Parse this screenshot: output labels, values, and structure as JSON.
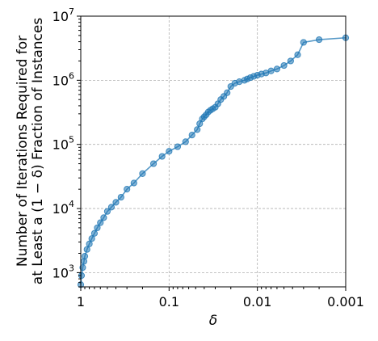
{
  "chart_data": {
    "type": "line",
    "xscale": "log",
    "yscale": "log",
    "x_inverted": true,
    "xlim": [
      1,
      0.001
    ],
    "ylim": [
      600,
      10000000
    ],
    "xlabel": "δ",
    "ylabel_line1": "Number of Iterations Required for",
    "ylabel_line2": "at Least a (1 − δ) Fraction of Instances",
    "x_ticks": [
      {
        "value": 1,
        "label": "1"
      },
      {
        "value": 0.1,
        "label": "0.1"
      },
      {
        "value": 0.01,
        "label": "0.01"
      },
      {
        "value": 0.001,
        "label": "0.001"
      }
    ],
    "y_ticks": [
      {
        "value": 1000,
        "base": "10",
        "exp": "3"
      },
      {
        "value": 10000,
        "base": "10",
        "exp": "4"
      },
      {
        "value": 100000,
        "base": "10",
        "exp": "5"
      },
      {
        "value": 1000000,
        "base": "10",
        "exp": "6"
      },
      {
        "value": 10000000,
        "base": "10",
        "exp": "7"
      }
    ],
    "grid": true,
    "color": "#1f77b4",
    "series": [
      {
        "x": [
          1.0,
          0.98,
          0.95,
          0.92,
          0.9,
          0.85,
          0.8,
          0.75,
          0.7,
          0.65,
          0.6,
          0.55,
          0.5,
          0.45,
          0.4,
          0.35,
          0.3,
          0.25,
          0.2,
          0.15,
          0.12,
          0.1,
          0.08,
          0.065,
          0.055,
          0.048,
          0.045,
          0.042,
          0.04,
          0.038,
          0.036,
          0.034,
          0.032,
          0.03,
          0.028,
          0.026,
          0.024,
          0.022,
          0.02,
          0.018,
          0.016,
          0.014,
          0.013,
          0.012,
          0.011,
          0.01,
          0.009,
          0.008,
          0.007,
          0.006,
          0.005,
          0.0042,
          0.0035,
          0.003,
          0.002,
          0.001
        ],
        "y": [
          650,
          900,
          1200,
          1500,
          1800,
          2300,
          2800,
          3400,
          4100,
          5000,
          6000,
          7200,
          9000,
          10500,
          12500,
          15000,
          20000,
          25000,
          35000,
          50000,
          65000,
          78000,
          92000,
          110000,
          140000,
          170000,
          210000,
          250000,
          270000,
          290000,
          320000,
          340000,
          360000,
          380000,
          430000,
          500000,
          560000,
          640000,
          800000,
          900000,
          950000,
          1000000,
          1050000,
          1100000,
          1150000,
          1200000,
          1250000,
          1300000,
          1400000,
          1500000,
          1700000,
          2000000,
          2500000,
          3900000,
          4300000,
          4600000
        ]
      }
    ]
  }
}
